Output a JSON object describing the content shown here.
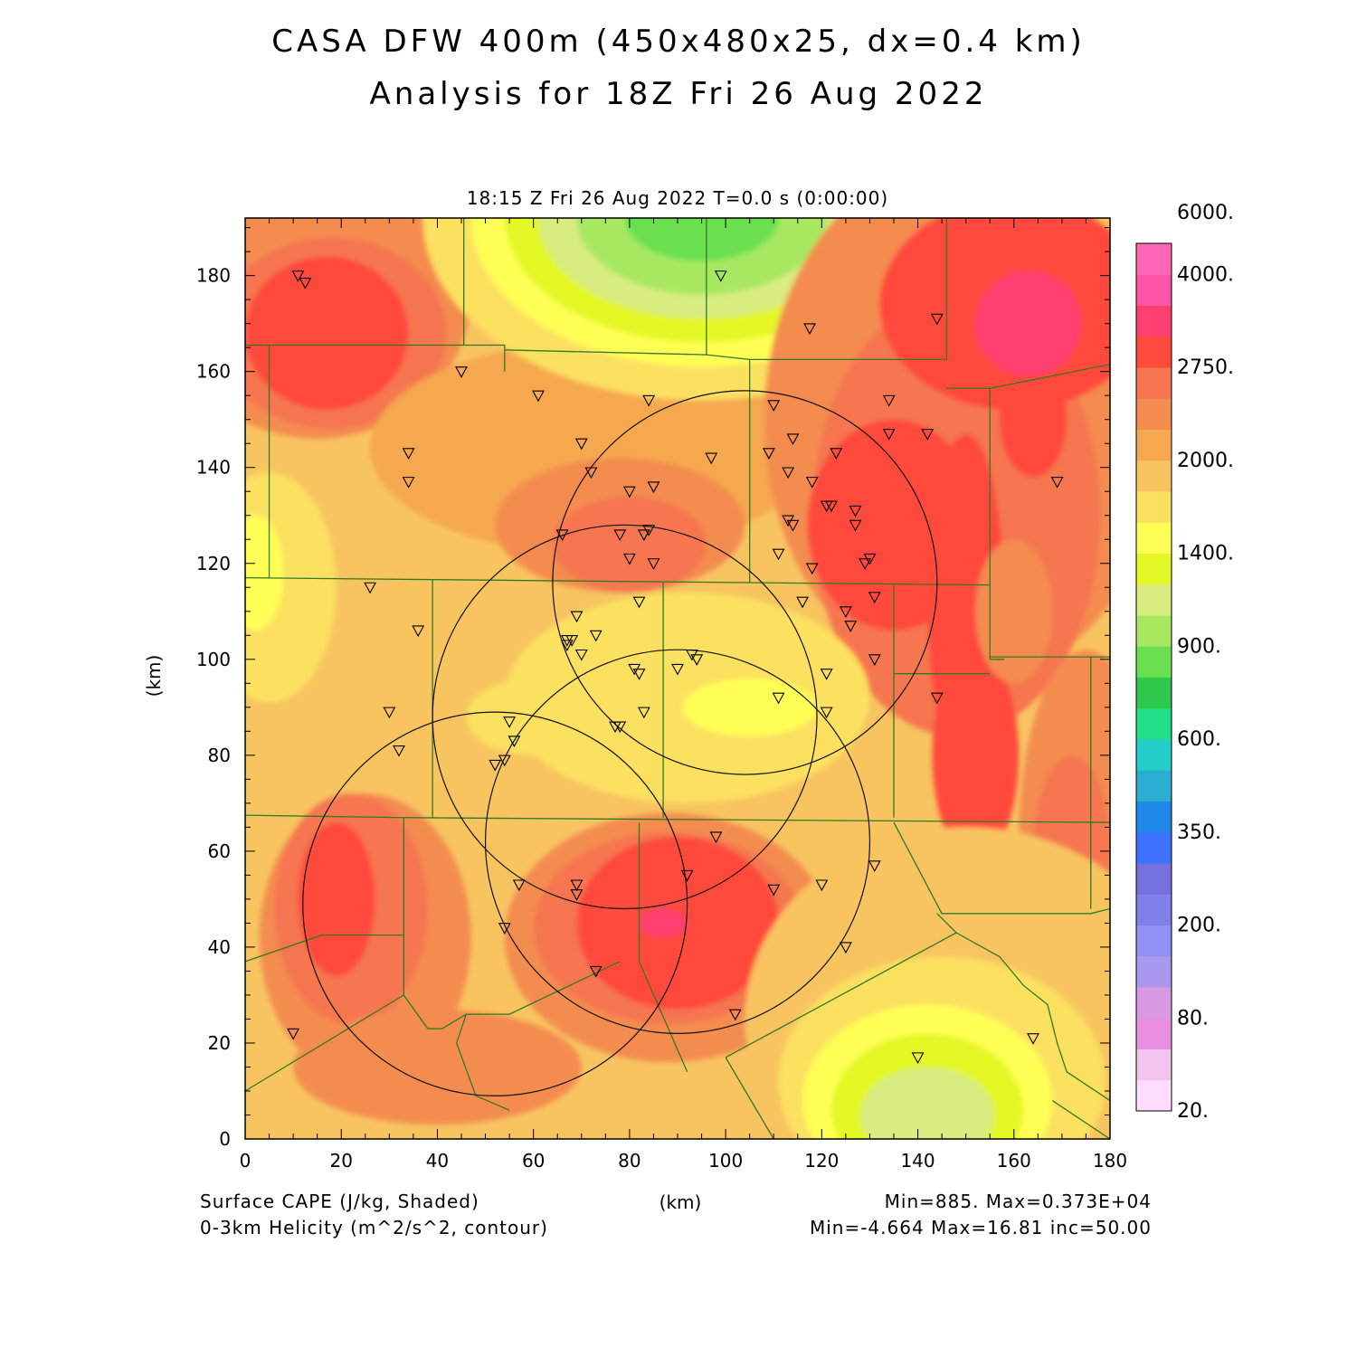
{
  "header": {
    "title_line1": "CASA DFW 400m (450x480x25, dx=0.4 km)",
    "title_line2": "Analysis for 18Z Fri 26 Aug 2022",
    "valid_time": "18:15 Z Fri 26 Aug 2022    T=0.0 s (0:00:00)"
  },
  "axes": {
    "x_label": "(km)",
    "y_label": "(km)",
    "x_range": [
      0,
      180
    ],
    "y_range": [
      0,
      192
    ],
    "x_ticks": [
      "0",
      "20",
      "40",
      "60",
      "80",
      "100",
      "120",
      "140",
      "160",
      "180"
    ],
    "y_ticks": [
      "0",
      "20",
      "40",
      "60",
      "80",
      "100",
      "120",
      "140",
      "160",
      "180"
    ]
  },
  "footer": {
    "shaded_field": "Surface CAPE (J/kg, Shaded)",
    "contour_field": "0-3km Helicity (m^2/s^2, contour)",
    "shaded_stats": "Min=885. Max=0.373E+04",
    "contour_stats": "Min=-4.664 Max=16.81 inc=50.00"
  },
  "colorbar": {
    "colors": [
      "#ffddff",
      "#f2c4ee",
      "#e890e0",
      "#d898e2",
      "#a898ee",
      "#9090f6",
      "#8080ea",
      "#7470de",
      "#3c72ff",
      "#2088e8",
      "#2aaed2",
      "#24cec8",
      "#22de88",
      "#2ec84c",
      "#6ae050",
      "#a8e860",
      "#d8ec80",
      "#e4f828",
      "#ffff55",
      "#fce060",
      "#f8c460",
      "#f6a850",
      "#f48c50",
      "#f67650",
      "#ff4a3c",
      "#ff3f70",
      "#ff55a8",
      "#ff66b4"
    ],
    "labels": [
      {
        "text": "20.",
        "index": 0
      },
      {
        "text": "80.",
        "index": 3
      },
      {
        "text": "200.",
        "index": 6
      },
      {
        "text": "350.",
        "index": 9
      },
      {
        "text": "600.",
        "index": 12
      },
      {
        "text": "900.",
        "index": 15
      },
      {
        "text": "1400.",
        "index": 18
      },
      {
        "text": "2000.",
        "index": 21
      },
      {
        "text": "2750.",
        "index": 24
      },
      {
        "text": "4000.",
        "index": 27
      },
      {
        "text": "6000.",
        "index": 29
      }
    ]
  },
  "cape_field": {
    "background": "#f8c460",
    "blobs": [
      {
        "cx": 15,
        "cy": 176,
        "rx": 32,
        "ry": 30,
        "color": "#f48c50"
      },
      {
        "cx": 18,
        "cy": 168,
        "rx": 24,
        "ry": 20,
        "color": "#f67650"
      },
      {
        "cx": 17,
        "cy": 168,
        "rx": 17,
        "ry": 16,
        "color": "#ff4a3c"
      },
      {
        "cx": 72,
        "cy": 144,
        "rx": 46,
        "ry": 22,
        "color": "#f6a850"
      },
      {
        "cx": 78,
        "cy": 128,
        "rx": 26,
        "ry": 14,
        "color": "#f48c50"
      },
      {
        "cx": 80,
        "cy": 124,
        "rx": 16,
        "ry": 10,
        "color": "#f67650"
      },
      {
        "cx": 95,
        "cy": 192,
        "rx": 58,
        "ry": 38,
        "color": "#fce060"
      },
      {
        "cx": 95,
        "cy": 192,
        "rx": 48,
        "ry": 31,
        "color": "#ffff55"
      },
      {
        "cx": 95,
        "cy": 192,
        "rx": 41,
        "ry": 26,
        "color": "#e4f828"
      },
      {
        "cx": 95,
        "cy": 192,
        "rx": 34,
        "ry": 21,
        "color": "#d8ec80"
      },
      {
        "cx": 95,
        "cy": 192,
        "rx": 26,
        "ry": 16,
        "color": "#a8e860"
      },
      {
        "cx": 95,
        "cy": 192,
        "rx": 16,
        "ry": 9,
        "color": "#6ae050"
      },
      {
        "cx": 150,
        "cy": 150,
        "rx": 42,
        "ry": 55,
        "color": "#f48c50"
      },
      {
        "cx": 148,
        "cy": 130,
        "rx": 30,
        "ry": 46,
        "color": "#f67650"
      },
      {
        "cx": 135,
        "cy": 128,
        "rx": 18,
        "ry": 22,
        "color": "#ff4a3c"
      },
      {
        "cx": 150,
        "cy": 112,
        "rx": 8,
        "ry": 35,
        "color": "#ff4a3c"
      },
      {
        "cx": 152,
        "cy": 80,
        "rx": 9,
        "ry": 22,
        "color": "#ff4a3c"
      },
      {
        "cx": 160,
        "cy": 174,
        "rx": 28,
        "ry": 22,
        "color": "#ff4a3c"
      },
      {
        "cx": 164,
        "cy": 150,
        "rx": 7,
        "ry": 12,
        "color": "#ff4a3c"
      },
      {
        "cx": 163,
        "cy": 170,
        "rx": 11,
        "ry": 11,
        "color": "#ff3f70"
      },
      {
        "cx": 160,
        "cy": 110,
        "rx": 8,
        "ry": 15,
        "color": "#f48c50"
      },
      {
        "cx": 175,
        "cy": 62,
        "rx": 14,
        "ry": 40,
        "color": "#f48c50"
      },
      {
        "cx": 172,
        "cy": 60,
        "rx": 8,
        "ry": 20,
        "color": "#f67650"
      },
      {
        "cx": 92,
        "cy": 92,
        "rx": 38,
        "ry": 22,
        "color": "#fce060"
      },
      {
        "cx": 105,
        "cy": 90,
        "rx": 14,
        "ry": 6,
        "color": "#ffff55"
      },
      {
        "cx": 60,
        "cy": 88,
        "rx": 14,
        "ry": 8,
        "color": "#fce060"
      },
      {
        "cx": 88,
        "cy": 42,
        "rx": 34,
        "ry": 26,
        "color": "#f48c50"
      },
      {
        "cx": 88,
        "cy": 44,
        "rx": 28,
        "ry": 20,
        "color": "#f67650"
      },
      {
        "cx": 90,
        "cy": 45,
        "rx": 21,
        "ry": 18,
        "color": "#ff4a3c"
      },
      {
        "cx": 87,
        "cy": 45,
        "rx": 5,
        "ry": 3,
        "color": "#ff3f70"
      },
      {
        "cx": 25,
        "cy": 42,
        "rx": 22,
        "ry": 30,
        "color": "#f48c50"
      },
      {
        "cx": 22,
        "cy": 48,
        "rx": 16,
        "ry": 24,
        "color": "#f67650"
      },
      {
        "cx": 19,
        "cy": 50,
        "rx": 8,
        "ry": 16,
        "color": "#ff4a3c"
      },
      {
        "cx": 40,
        "cy": 15,
        "rx": 30,
        "ry": 12,
        "color": "#f48c50"
      },
      {
        "cx": 5,
        "cy": 115,
        "rx": 14,
        "ry": 24,
        "color": "#fce060"
      },
      {
        "cx": 2,
        "cy": 118,
        "rx": 6,
        "ry": 12,
        "color": "#ffff55"
      },
      {
        "cx": 150,
        "cy": 25,
        "rx": 46,
        "ry": 40,
        "color": "#f8c460"
      },
      {
        "cx": 145,
        "cy": 12,
        "rx": 34,
        "ry": 26,
        "color": "#fce060"
      },
      {
        "cx": 142,
        "cy": 8,
        "rx": 26,
        "ry": 20,
        "color": "#ffff55"
      },
      {
        "cx": 142,
        "cy": 6,
        "rx": 20,
        "ry": 16,
        "color": "#e4f828"
      },
      {
        "cx": 142,
        "cy": 5,
        "rx": 14,
        "ry": 10,
        "color": "#d8ec80"
      }
    ]
  },
  "helicity_circles": [
    {
      "cx": 52,
      "cy": 49,
      "r": 40
    },
    {
      "cx": 79,
      "cy": 88,
      "r": 40
    },
    {
      "cx": 90,
      "cy": 62,
      "r": 40
    },
    {
      "cx": 104,
      "cy": 116,
      "r": 40
    }
  ],
  "county_lines": [
    [
      [
        0,
        165.5
      ],
      [
        54,
        165.5
      ],
      [
        54,
        160
      ]
    ],
    [
      [
        45.5,
        192
      ],
      [
        45.5,
        165.5
      ]
    ],
    [
      [
        54,
        164.5
      ],
      [
        96,
        163.5
      ],
      [
        105,
        162.5
      ],
      [
        146,
        162.5
      ],
      [
        146,
        192
      ]
    ],
    [
      [
        105,
        162.5
      ],
      [
        105,
        116
      ]
    ],
    [
      [
        96,
        192
      ],
      [
        96,
        163.5
      ]
    ],
    [
      [
        146,
        156.5
      ],
      [
        155,
        156.5
      ],
      [
        180,
        161.5
      ]
    ],
    [
      [
        155,
        156.5
      ],
      [
        155,
        115.5
      ]
    ],
    [
      [
        5,
        165.5
      ],
      [
        5,
        117
      ]
    ],
    [
      [
        0,
        117
      ],
      [
        155,
        115.5
      ]
    ],
    [
      [
        39,
        116.5
      ],
      [
        39,
        67
      ]
    ],
    [
      [
        87,
        116
      ],
      [
        87,
        67
      ]
    ],
    [
      [
        135,
        115.5
      ],
      [
        135,
        67
      ]
    ],
    [
      [
        135,
        97
      ],
      [
        155,
        97
      ]
    ],
    [
      [
        155,
        115.5
      ],
      [
        155,
        100
      ],
      [
        158,
        100
      ]
    ],
    [
      [
        155,
        100.5
      ],
      [
        180,
        100.5
      ]
    ],
    [
      [
        176,
        100.5
      ],
      [
        176,
        48
      ]
    ],
    [
      [
        0,
        67.5
      ],
      [
        33,
        67
      ],
      [
        180,
        66
      ]
    ],
    [
      [
        33,
        67
      ],
      [
        33,
        30
      ],
      [
        0,
        10
      ]
    ],
    [
      [
        16,
        42.5
      ],
      [
        33,
        42.5
      ]
    ],
    [
      [
        16,
        42.5
      ],
      [
        0,
        37
      ]
    ],
    [
      [
        33,
        30
      ],
      [
        38,
        23
      ],
      [
        41,
        23
      ],
      [
        46,
        26
      ],
      [
        55,
        26
      ],
      [
        78,
        37
      ]
    ],
    [
      [
        82,
        66
      ],
      [
        82,
        37
      ],
      [
        92,
        14
      ]
    ],
    [
      [
        46,
        26
      ],
      [
        44,
        20
      ],
      [
        48,
        9
      ],
      [
        55,
        6
      ]
    ],
    [
      [
        135,
        66
      ],
      [
        145,
        47
      ],
      [
        176,
        47
      ],
      [
        180,
        48
      ]
    ],
    [
      [
        144,
        47
      ],
      [
        148,
        43
      ],
      [
        157,
        38
      ],
      [
        162,
        32
      ],
      [
        167,
        28
      ],
      [
        169,
        20
      ],
      [
        171,
        14
      ],
      [
        180,
        8
      ]
    ],
    [
      [
        168,
        8
      ],
      [
        180,
        0
      ]
    ],
    [
      [
        100,
        17
      ],
      [
        148,
        43
      ]
    ],
    [
      [
        100,
        17
      ],
      [
        110,
        0
      ]
    ]
  ],
  "station_markers": [
    [
      11,
      180
    ],
    [
      12.5,
      178.5
    ],
    [
      45,
      160
    ],
    [
      61,
      155
    ],
    [
      99,
      180
    ],
    [
      117.5,
      169
    ],
    [
      144,
      171
    ],
    [
      34,
      143
    ],
    [
      34,
      137
    ],
    [
      70,
      145
    ],
    [
      84,
      154
    ],
    [
      97,
      142
    ],
    [
      110,
      153
    ],
    [
      134,
      154
    ],
    [
      109,
      143
    ],
    [
      114,
      146
    ],
    [
      123,
      143
    ],
    [
      134,
      147
    ],
    [
      142,
      147
    ],
    [
      169,
      137
    ],
    [
      72,
      139
    ],
    [
      113,
      139
    ],
    [
      118,
      137
    ],
    [
      80,
      135
    ],
    [
      85,
      136
    ],
    [
      121,
      132
    ],
    [
      122,
      132
    ],
    [
      127,
      131
    ],
    [
      66,
      126
    ],
    [
      78,
      126
    ],
    [
      83,
      126
    ],
    [
      84,
      127
    ],
    [
      113,
      129
    ],
    [
      114,
      128
    ],
    [
      127,
      128
    ],
    [
      111,
      122
    ],
    [
      130,
      121
    ],
    [
      129,
      120
    ],
    [
      80,
      121
    ],
    [
      85,
      120
    ],
    [
      118,
      119
    ],
    [
      26,
      115
    ],
    [
      36,
      106
    ],
    [
      69,
      109
    ],
    [
      82,
      112
    ],
    [
      116,
      112
    ],
    [
      125,
      110
    ],
    [
      126,
      107
    ],
    [
      131,
      113
    ],
    [
      67,
      104
    ],
    [
      68,
      104
    ],
    [
      67,
      103
    ],
    [
      70,
      101
    ],
    [
      73,
      105
    ],
    [
      93,
      101
    ],
    [
      94,
      100
    ],
    [
      90,
      98
    ],
    [
      81,
      98
    ],
    [
      82,
      97
    ],
    [
      121,
      97
    ],
    [
      131,
      100
    ],
    [
      30,
      89
    ],
    [
      83,
      89
    ],
    [
      111,
      92
    ],
    [
      121,
      89
    ],
    [
      144,
      92
    ],
    [
      55,
      87
    ],
    [
      78,
      86
    ],
    [
      77,
      86
    ],
    [
      32,
      81
    ],
    [
      56,
      83
    ],
    [
      54,
      79
    ],
    [
      52,
      78
    ],
    [
      98,
      63
    ],
    [
      92,
      55
    ],
    [
      131,
      57
    ],
    [
      57,
      53
    ],
    [
      69,
      53
    ],
    [
      69,
      51
    ],
    [
      110,
      52
    ],
    [
      120,
      53
    ],
    [
      54,
      44
    ],
    [
      125,
      40
    ],
    [
      73,
      35
    ],
    [
      102,
      26
    ],
    [
      10,
      22
    ],
    [
      140,
      17
    ],
    [
      164,
      21
    ]
  ]
}
